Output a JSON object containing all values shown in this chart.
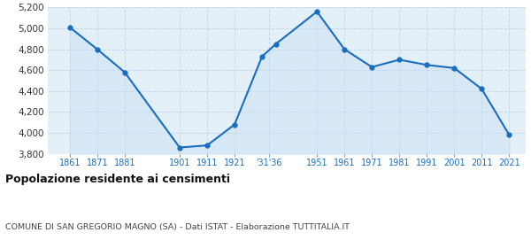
{
  "years": [
    1861,
    1871,
    1881,
    1901,
    1911,
    1921,
    1931,
    1936,
    1951,
    1961,
    1971,
    1981,
    1991,
    2001,
    2011,
    2021
  ],
  "population": [
    5010,
    4800,
    4580,
    3860,
    3880,
    4080,
    4730,
    4850,
    5160,
    4800,
    4630,
    4700,
    4650,
    4620,
    4420,
    3980
  ],
  "line_color": "#1a6ebd",
  "fill_color": "#d6e8f5",
  "marker_color": "#1a6ebd",
  "grid_color": "#c8d8e8",
  "bg_color": "#e4f0f8",
  "title": "Popolazione residente ai censimenti",
  "subtitle": "COMUNE DI SAN GREGORIO MAGNO (SA) - Dati ISTAT - Elaborazione TUTTITALIA.IT",
  "ylim": [
    3800,
    5200
  ],
  "yticks": [
    3800,
    4000,
    4200,
    4400,
    4600,
    4800,
    5000,
    5200
  ]
}
